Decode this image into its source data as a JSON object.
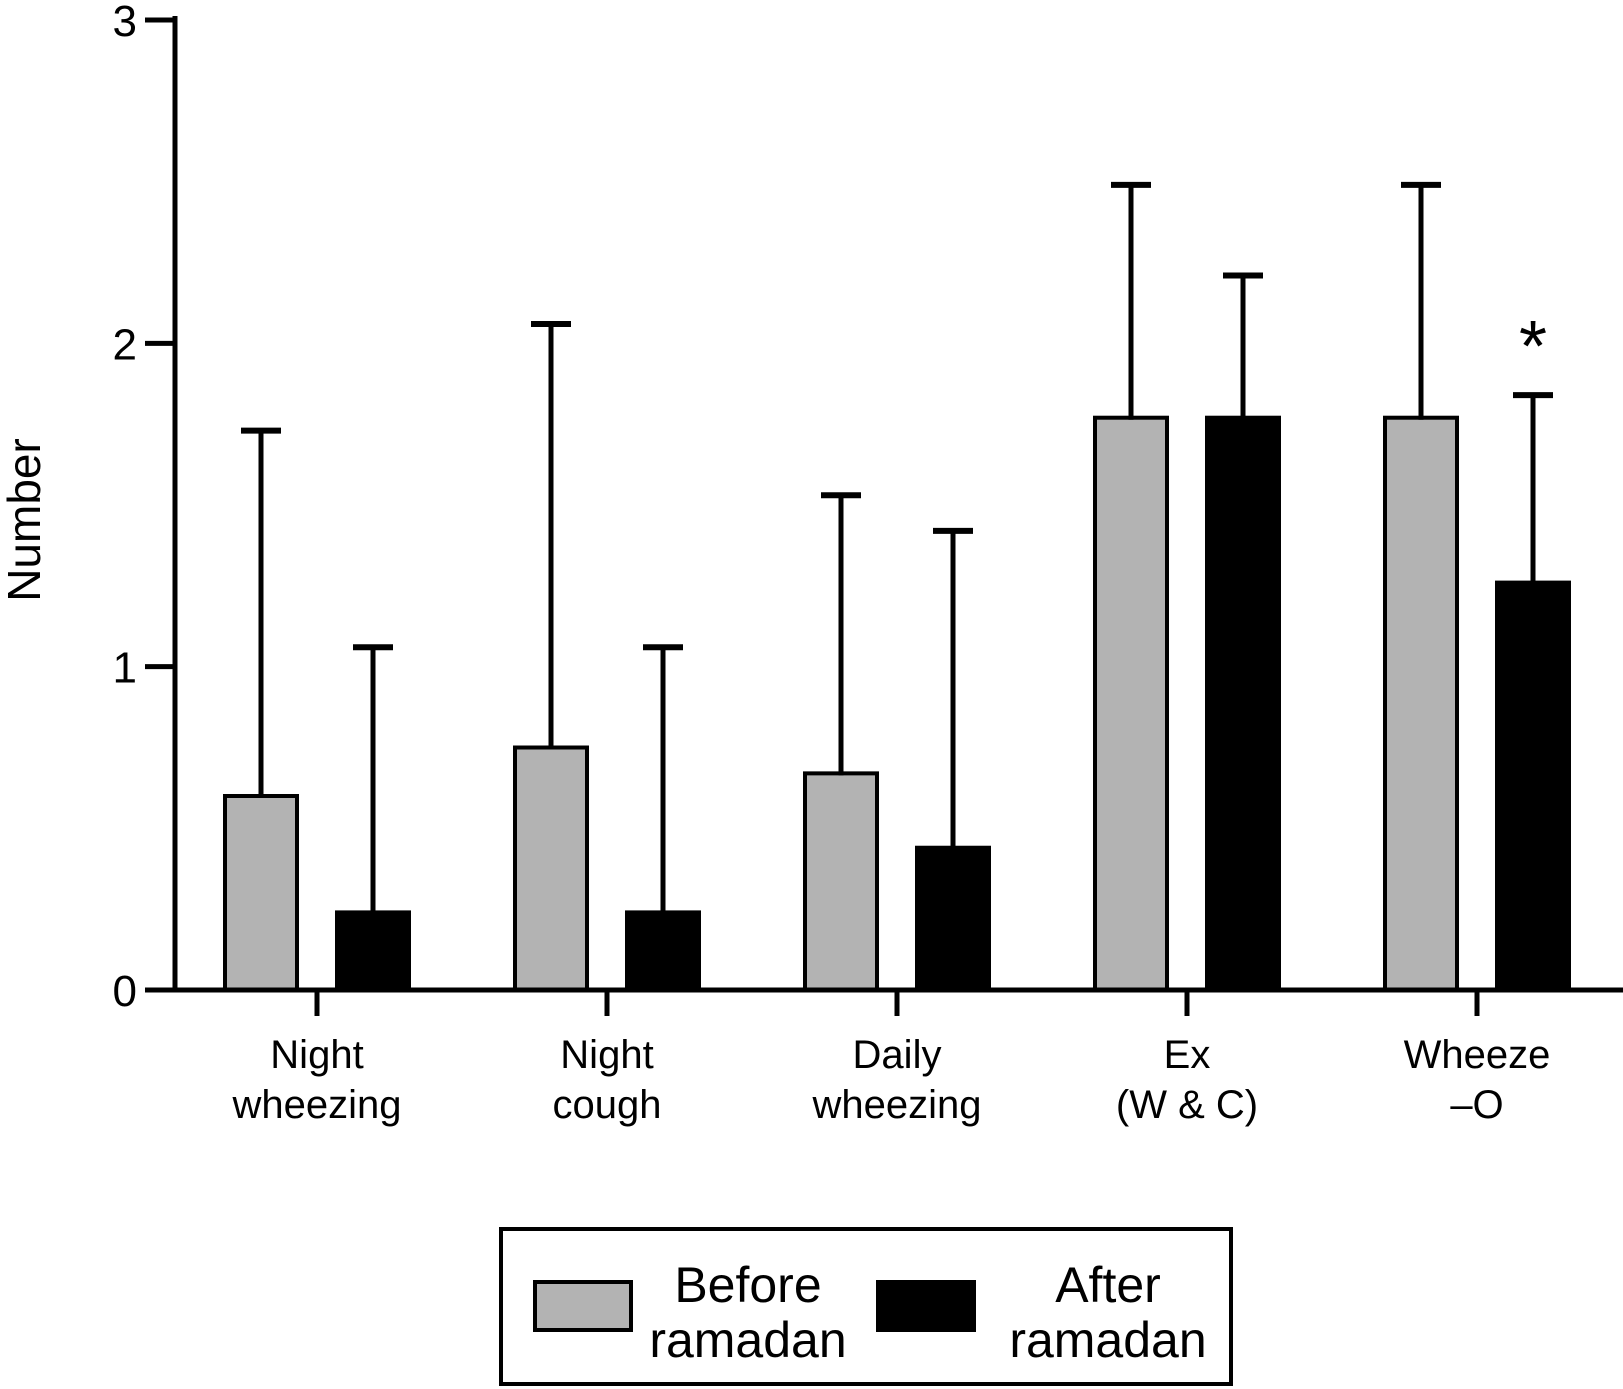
{
  "figure": {
    "background": "#ffffff",
    "significance_marker": "*"
  },
  "chart_data": {
    "type": "bar",
    "title": "",
    "xlabel": "",
    "ylabel": "Number",
    "ylim": [
      0,
      3
    ],
    "yticks": [
      "0",
      "1",
      "2",
      "3"
    ],
    "grid": false,
    "error_bars": "upper-whisker-with-cap",
    "legend_position": "bottom",
    "categories": [
      {
        "lines": [
          "Night",
          "wheezing"
        ]
      },
      {
        "lines": [
          "Night",
          "cough"
        ]
      },
      {
        "lines": [
          "Daily",
          "wheezing"
        ]
      },
      {
        "lines": [
          "Ex",
          "(W & C)"
        ]
      },
      {
        "lines": [
          "Wheeze",
          "–O"
        ]
      }
    ],
    "series": [
      {
        "name": "Before ramadan",
        "label_lines": [
          "Before",
          "ramadan"
        ],
        "color": "#b3b3b3",
        "values": [
          0.6,
          0.75,
          0.67,
          1.77,
          1.77
        ],
        "error_top": [
          1.73,
          2.06,
          1.53,
          2.49,
          2.49
        ]
      },
      {
        "name": "After ramadan",
        "label_lines": [
          "After",
          "ramadan"
        ],
        "color": "#000000",
        "values": [
          0.24,
          0.24,
          0.44,
          1.77,
          1.26
        ],
        "error_top": [
          1.06,
          1.06,
          1.42,
          2.21,
          1.84
        ]
      }
    ],
    "annotations": [
      {
        "text": "*",
        "category_index": 4,
        "series_index": 1
      }
    ]
  }
}
